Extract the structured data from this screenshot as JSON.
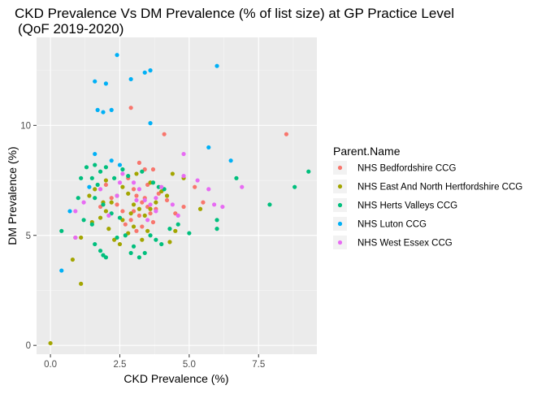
{
  "chart_data": {
    "type": "scatter",
    "title_line1": "CKD Prevalence Vs DM Prevalence (% of list size) at GP Practice Level",
    "title_line2": "(QoF 2019-2020)",
    "xlabel": "CKD Prevalence (%)",
    "ylabel": "DM Prevalence (%)",
    "xlim": [
      -0.5,
      9.6
    ],
    "ylim": [
      -0.4,
      14.0
    ],
    "x_ticks": [
      0,
      2.5,
      5,
      7.5
    ],
    "x_tick_labels": [
      "0.0",
      "2.5",
      "5.0",
      "7.5"
    ],
    "y_ticks": [
      0,
      5,
      10
    ],
    "y_tick_labels": [
      "0",
      "5",
      "10"
    ],
    "grid": true,
    "panel_background": "#ebebeb",
    "legend": {
      "title": "Parent.Name",
      "position": "right"
    },
    "series": [
      {
        "name": "NHS Bedfordshire CCG",
        "color": "#F8766D",
        "points": [
          [
            2.9,
            10.8
          ],
          [
            4.1,
            9.6
          ],
          [
            8.5,
            9.6
          ],
          [
            5.2,
            7.2
          ],
          [
            3.4,
            8.0
          ],
          [
            3.7,
            8.0
          ],
          [
            2.8,
            7.6
          ],
          [
            3.0,
            7.1
          ],
          [
            3.1,
            6.8
          ],
          [
            3.3,
            6.5
          ],
          [
            3.5,
            6.3
          ],
          [
            3.8,
            6.2
          ],
          [
            3.9,
            6.9
          ],
          [
            3.6,
            6.0
          ],
          [
            3.2,
            5.9
          ],
          [
            2.9,
            5.7
          ],
          [
            2.6,
            6.1
          ],
          [
            2.4,
            6.4
          ],
          [
            2.2,
            6.7
          ],
          [
            2.0,
            7.3
          ],
          [
            1.8,
            6.3
          ],
          [
            3.0,
            6.1
          ],
          [
            3.4,
            6.7
          ],
          [
            4.2,
            6.6
          ],
          [
            4.5,
            6.0
          ],
          [
            5.5,
            6.5
          ],
          [
            4.8,
            6.3
          ],
          [
            3.3,
            5.4
          ],
          [
            3.7,
            5.6
          ],
          [
            2.7,
            5.5
          ],
          [
            3.1,
            5.2
          ],
          [
            3.5,
            7.3
          ],
          [
            3.2,
            8.3
          ]
        ]
      },
      {
        "name": "NHS East And North Hertfordshire CCG",
        "color": "#A3A500",
        "points": [
          [
            0.0,
            0.1
          ],
          [
            1.1,
            2.8
          ],
          [
            0.8,
            3.9
          ],
          [
            0.9,
            4.9
          ],
          [
            1.1,
            4.9
          ],
          [
            1.5,
            5.6
          ],
          [
            1.8,
            5.8
          ],
          [
            2.0,
            6.1
          ],
          [
            2.2,
            6.5
          ],
          [
            2.4,
            6.8
          ],
          [
            2.6,
            7.2
          ],
          [
            2.8,
            6.9
          ],
          [
            3.0,
            6.4
          ],
          [
            3.2,
            6.2
          ],
          [
            3.4,
            5.9
          ],
          [
            3.6,
            6.2
          ],
          [
            3.8,
            6.5
          ],
          [
            4.0,
            7.0
          ],
          [
            4.2,
            6.8
          ],
          [
            4.4,
            7.8
          ],
          [
            4.8,
            7.6
          ],
          [
            5.4,
            6.2
          ],
          [
            2.1,
            5.3
          ],
          [
            2.3,
            4.8
          ],
          [
            2.5,
            4.6
          ],
          [
            2.8,
            5.1
          ],
          [
            3.0,
            5.4
          ],
          [
            3.3,
            4.8
          ],
          [
            4.3,
            4.7
          ],
          [
            4.5,
            5.2
          ],
          [
            2.0,
            7.5
          ],
          [
            1.6,
            7.1
          ],
          [
            3.1,
            7.8
          ],
          [
            3.6,
            7.4
          ],
          [
            1.9,
            6.5
          ],
          [
            2.6,
            5.7
          ],
          [
            3.5,
            5.2
          ],
          [
            1.4,
            6.8
          ],
          [
            2.9,
            6.0
          ]
        ]
      },
      {
        "name": "NHS Herts Valleys CCG",
        "color": "#00BF7D",
        "points": [
          [
            0.4,
            5.2
          ],
          [
            1.0,
            6.7
          ],
          [
            1.1,
            7.6
          ],
          [
            1.3,
            8.1
          ],
          [
            1.6,
            8.2
          ],
          [
            1.8,
            7.9
          ],
          [
            2.0,
            8.1
          ],
          [
            1.5,
            7.6
          ],
          [
            1.7,
            7.3
          ],
          [
            2.3,
            7.6
          ],
          [
            2.6,
            8.0
          ],
          [
            2.8,
            7.7
          ],
          [
            3.3,
            7.9
          ],
          [
            3.7,
            7.4
          ],
          [
            3.9,
            7.2
          ],
          [
            4.1,
            7.1
          ],
          [
            1.6,
            6.7
          ],
          [
            1.9,
            6.4
          ],
          [
            2.2,
            6.0
          ],
          [
            2.5,
            5.8
          ],
          [
            2.7,
            5.0
          ],
          [
            3.0,
            4.5
          ],
          [
            3.2,
            4.0
          ],
          [
            3.4,
            4.2
          ],
          [
            3.8,
            4.8
          ],
          [
            4.0,
            4.6
          ],
          [
            4.3,
            5.3
          ],
          [
            4.6,
            5.5
          ],
          [
            5.0,
            5.1
          ],
          [
            6.0,
            5.7
          ],
          [
            6.0,
            5.3
          ],
          [
            6.7,
            7.6
          ],
          [
            7.9,
            6.4
          ],
          [
            8.8,
            7.2
          ],
          [
            9.3,
            7.9
          ],
          [
            1.6,
            4.6
          ],
          [
            1.8,
            4.3
          ],
          [
            1.9,
            4.1
          ],
          [
            2.0,
            4.0
          ],
          [
            1.2,
            5.7
          ],
          [
            1.5,
            5.5
          ],
          [
            2.9,
            4.2
          ],
          [
            3.6,
            5.0
          ],
          [
            2.4,
            4.9
          ]
        ]
      },
      {
        "name": "NHS Luton CCG",
        "color": "#00B0F6",
        "points": [
          [
            2.4,
            13.2
          ],
          [
            6.0,
            12.7
          ],
          [
            3.6,
            12.5
          ],
          [
            3.4,
            12.4
          ],
          [
            2.9,
            12.1
          ],
          [
            1.6,
            12.0
          ],
          [
            2.0,
            11.9
          ],
          [
            1.7,
            10.7
          ],
          [
            2.2,
            10.7
          ],
          [
            1.9,
            10.6
          ],
          [
            3.6,
            10.1
          ],
          [
            5.7,
            9.0
          ],
          [
            6.5,
            8.4
          ],
          [
            1.6,
            8.7
          ],
          [
            2.2,
            8.4
          ],
          [
            2.5,
            8.2
          ],
          [
            1.4,
            7.2
          ],
          [
            0.7,
            6.1
          ],
          [
            0.4,
            3.4
          ]
        ]
      },
      {
        "name": "NHS West Essex CCG",
        "color": "#E76BF3",
        "points": [
          [
            0.9,
            6.1
          ],
          [
            0.9,
            4.9
          ],
          [
            1.2,
            6.5
          ],
          [
            1.8,
            7.1
          ],
          [
            2.5,
            7.4
          ],
          [
            2.6,
            7.8
          ],
          [
            3.0,
            7.4
          ],
          [
            3.2,
            7.1
          ],
          [
            3.4,
            6.6
          ],
          [
            3.6,
            6.4
          ],
          [
            3.8,
            6.1
          ],
          [
            3.5,
            5.7
          ],
          [
            4.8,
            7.7
          ],
          [
            4.8,
            8.7
          ],
          [
            5.3,
            7.5
          ],
          [
            5.7,
            7.1
          ],
          [
            5.9,
            6.4
          ],
          [
            6.2,
            6.3
          ],
          [
            6.9,
            7.2
          ],
          [
            4.6,
            5.9
          ],
          [
            2.4,
            6.8
          ],
          [
            3.8,
            6.7
          ],
          [
            4.0,
            7.2
          ],
          [
            2.1,
            5.9
          ],
          [
            3.1,
            6.6
          ],
          [
            4.4,
            6.4
          ]
        ]
      }
    ]
  }
}
